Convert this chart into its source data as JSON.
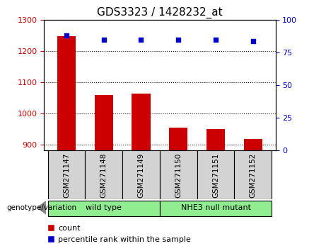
{
  "title": "GDS3323 / 1428232_at",
  "samples": [
    "GSM271147",
    "GSM271148",
    "GSM271149",
    "GSM271150",
    "GSM271151",
    "GSM271152"
  ],
  "bar_values": [
    1248,
    1060,
    1063,
    955,
    950,
    918
  ],
  "percentile_values": [
    88,
    85,
    85,
    85,
    85,
    84
  ],
  "bar_color": "#cc0000",
  "dot_color": "#0000cc",
  "ylim_left": [
    880,
    1300
  ],
  "yticks_left": [
    900,
    1000,
    1100,
    1200,
    1300
  ],
  "ylim_right": [
    0,
    100
  ],
  "yticks_right": [
    0,
    25,
    50,
    75,
    100
  ],
  "group_label": "genotype/variation",
  "legend_count_label": "count",
  "legend_pct_label": "percentile rank within the sample",
  "tick_color_left": "#cc0000",
  "tick_color_right": "#0000cc",
  "bar_width": 0.5,
  "group_configs": [
    {
      "start": 0,
      "end": 2,
      "label": "wild type",
      "color": "#90ee90"
    },
    {
      "start": 3,
      "end": 5,
      "label": "NHE3 null mutant",
      "color": "#90ee90"
    }
  ],
  "label_bg_color": "#d3d3d3"
}
